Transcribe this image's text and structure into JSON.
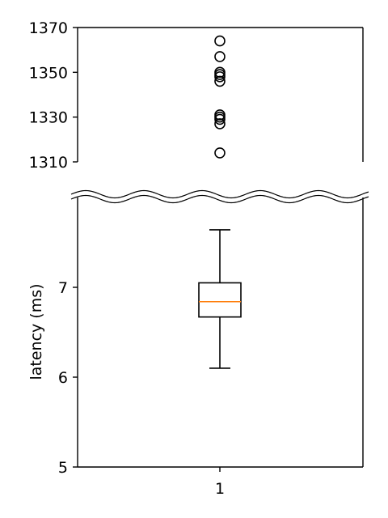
{
  "chart_data": {
    "type": "box",
    "broken_y_axis": true,
    "ylabel": "latency (ms)",
    "x_tick_labels": [
      "1"
    ],
    "panels": {
      "top": {
        "ylim": [
          1310,
          1370
        ],
        "yticks": [
          1310,
          1330,
          1350,
          1370
        ],
        "spine_right": true,
        "spine_bottom": false
      },
      "bottom": {
        "ylim": [
          5,
          8
        ],
        "yticks": [
          5,
          6,
          7
        ],
        "spine_right": true,
        "spine_top": false
      }
    },
    "series": [
      {
        "category": "1",
        "whisker_low": 6.1,
        "q1": 6.67,
        "median": 6.84,
        "q3": 7.05,
        "whisker_high": 7.64,
        "outliers": [
          1314,
          1327,
          1329,
          1330,
          1331,
          1346,
          1348,
          1349,
          1350,
          1357,
          1364
        ]
      }
    ],
    "colors": {
      "box": "#000000",
      "median": "#ff7f0e",
      "outlier_edge": "#000000"
    },
    "grid": false,
    "legend": "none"
  }
}
